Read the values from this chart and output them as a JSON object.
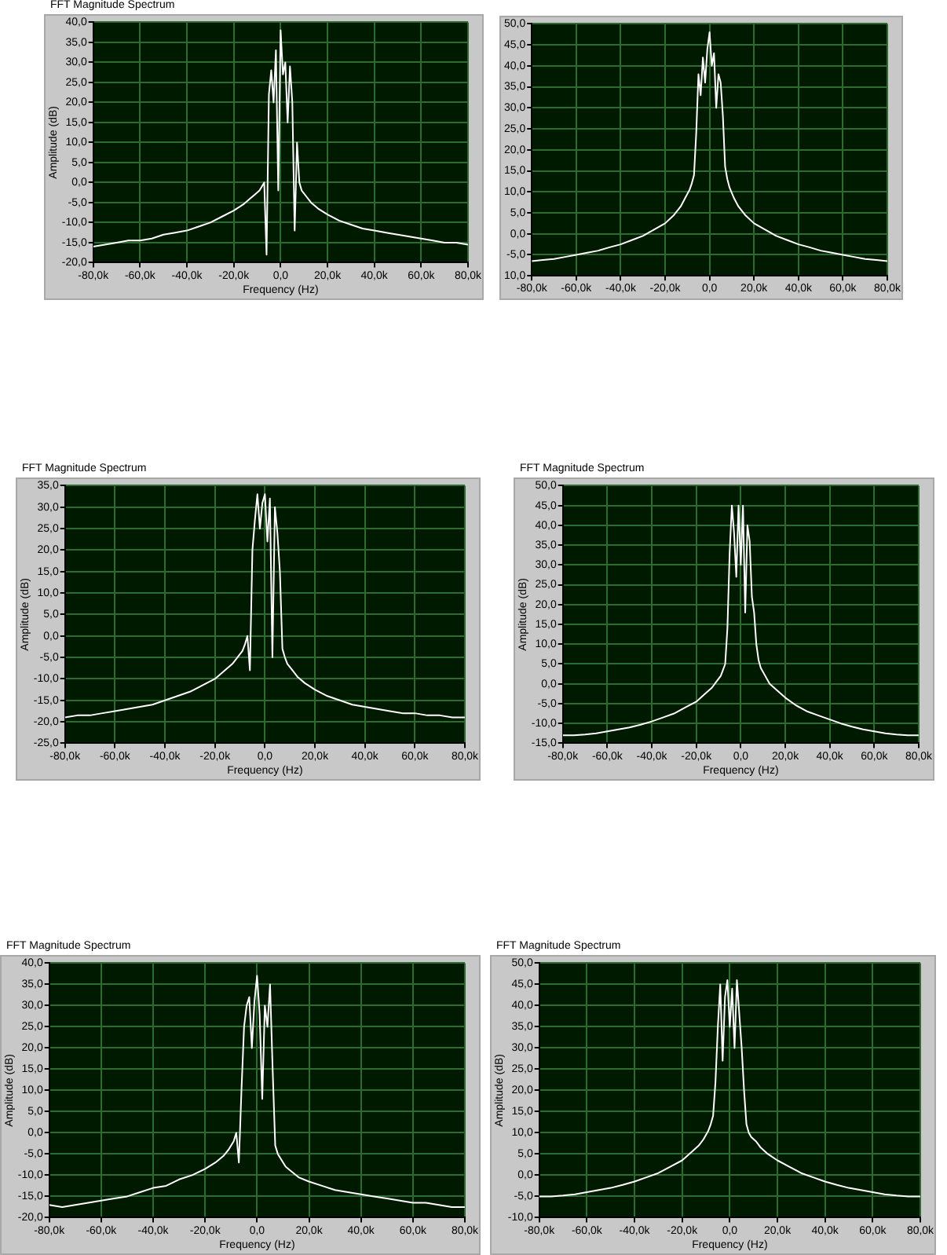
{
  "chart_data": [
    {
      "type": "line",
      "title": "FFT Magnitude Spectrum",
      "xlabel": "Frequency (Hz)",
      "ylabel": "Amplitude (dB)",
      "grid": true,
      "marker": "none",
      "line_style": "solid",
      "xlim": [
        -80000,
        80000
      ],
      "ylim": [
        -20,
        40
      ],
      "xticks": [
        {
          "value": -80000,
          "label": "-80,0k"
        },
        {
          "value": -60000,
          "label": "-60,0k"
        },
        {
          "value": -40000,
          "label": "-40,0k"
        },
        {
          "value": -20000,
          "label": "-20,0k"
        },
        {
          "value": 0,
          "label": "0,0"
        },
        {
          "value": 20000,
          "label": "20,0k"
        },
        {
          "value": 40000,
          "label": "40,0k"
        },
        {
          "value": 60000,
          "label": "60,0k"
        },
        {
          "value": 80000,
          "label": "80,0k"
        }
      ],
      "yticks": [
        {
          "value": -20,
          "label": "-20,0"
        },
        {
          "value": -15,
          "label": "-15,0"
        },
        {
          "value": -10,
          "label": "-10,0"
        },
        {
          "value": -5,
          "label": "-5,0"
        },
        {
          "value": 0,
          "label": "0,0"
        },
        {
          "value": 5,
          "label": "5,0"
        },
        {
          "value": 10,
          "label": "10,0"
        },
        {
          "value": 15,
          "label": "15,0"
        },
        {
          "value": 20,
          "label": "20,0"
        },
        {
          "value": 25,
          "label": "25,0"
        },
        {
          "value": 30,
          "label": "30,0"
        },
        {
          "value": 35,
          "label": "35,0"
        },
        {
          "value": 40,
          "label": "40,0"
        }
      ],
      "x": [
        -80000,
        -75000,
        -70000,
        -65000,
        -60000,
        -55000,
        -50000,
        -45000,
        -40000,
        -35000,
        -30000,
        -25000,
        -20000,
        -16000,
        -13000,
        -11000,
        -9000,
        -8000,
        -7000,
        -6000,
        -5000,
        -4000,
        -3000,
        -2000,
        -1000,
        0,
        1000,
        2000,
        3000,
        4000,
        5000,
        6000,
        7000,
        8000,
        9000,
        11000,
        13000,
        16000,
        20000,
        25000,
        30000,
        35000,
        40000,
        45000,
        50000,
        55000,
        60000,
        65000,
        70000,
        75000,
        80000
      ],
      "series": [
        {
          "color": "#ffffff",
          "values": [
            -16,
            -15.5,
            -15,
            -14.5,
            -14.5,
            -14,
            -13,
            -12.5,
            -12,
            -11,
            -10,
            -8.5,
            -7,
            -5.5,
            -4,
            -3,
            -2,
            -1,
            0,
            -18,
            22,
            28,
            20,
            33,
            -2,
            38,
            27,
            30,
            15,
            29,
            20,
            -12,
            10,
            0,
            -2,
            -3.5,
            -5,
            -6.5,
            -8,
            -9.5,
            -10.5,
            -11.5,
            -12,
            -12.5,
            -13,
            -13.5,
            -14,
            -14.5,
            -15,
            -15,
            -15.5
          ]
        }
      ]
    },
    {
      "type": "line",
      "grid": true,
      "marker": "none",
      "line_style": "solid",
      "xlim": [
        -80000,
        80000
      ],
      "ylim": [
        -10,
        50
      ],
      "xticks": [
        {
          "value": -80000,
          "label": "-80,0k"
        },
        {
          "value": -60000,
          "label": "-60,0k"
        },
        {
          "value": -40000,
          "label": "-40,0k"
        },
        {
          "value": -20000,
          "label": "-20,0k"
        },
        {
          "value": 0,
          "label": "0,0"
        },
        {
          "value": 20000,
          "label": "20,0k"
        },
        {
          "value": 40000,
          "label": "40,0k"
        },
        {
          "value": 60000,
          "label": "60,0k"
        },
        {
          "value": 80000,
          "label": "80,0k"
        }
      ],
      "yticks": [
        {
          "value": -10,
          "label": "10,0"
        },
        {
          "value": -5,
          "label": "-5,0"
        },
        {
          "value": 0,
          "label": "0,0"
        },
        {
          "value": 5,
          "label": "5,0"
        },
        {
          "value": 10,
          "label": "10,0"
        },
        {
          "value": 15,
          "label": "15,0"
        },
        {
          "value": 20,
          "label": "20,0"
        },
        {
          "value": 25,
          "label": "25,0"
        },
        {
          "value": 30,
          "label": "30,0"
        },
        {
          "value": 35,
          "label": "35,0"
        },
        {
          "value": 40,
          "label": "40,0"
        },
        {
          "value": 45,
          "label": "45,0"
        },
        {
          "value": 50,
          "label": "50,0"
        }
      ],
      "x": [
        -80000,
        -75000,
        -70000,
        -65000,
        -60000,
        -55000,
        -50000,
        -45000,
        -40000,
        -35000,
        -30000,
        -25000,
        -20000,
        -16000,
        -13000,
        -11000,
        -9000,
        -8000,
        -7000,
        -6000,
        -5000,
        -4000,
        -3000,
        -2000,
        -1000,
        0,
        1000,
        2000,
        3000,
        4000,
        5000,
        6000,
        7000,
        8000,
        9000,
        11000,
        13000,
        16000,
        20000,
        25000,
        30000,
        35000,
        40000,
        45000,
        50000,
        55000,
        60000,
        65000,
        70000,
        75000,
        80000
      ],
      "series": [
        {
          "color": "#ffffff",
          "values": [
            -6.5,
            -6.2,
            -6,
            -5.5,
            -5,
            -4.5,
            -4,
            -3.2,
            -2.5,
            -1.5,
            -0.5,
            1,
            2.5,
            4.5,
            6.5,
            8.5,
            10.5,
            12,
            14,
            24,
            38,
            33,
            42,
            36,
            44,
            48,
            40,
            43,
            30,
            38,
            36,
            28,
            16,
            13,
            11,
            8.5,
            6.5,
            4.5,
            2.5,
            1,
            -0.5,
            -1.5,
            -2.5,
            -3.2,
            -4,
            -4.5,
            -5,
            -5.5,
            -6,
            -6.2,
            -6.5
          ]
        }
      ]
    },
    {
      "type": "line",
      "title": "FFT Magnitude Spectrum",
      "xlabel": "Frequency (Hz)",
      "ylabel": "Amplitude (dB)",
      "grid": true,
      "marker": "none",
      "line_style": "solid",
      "xlim": [
        -80000,
        80000
      ],
      "ylim": [
        -25,
        35
      ],
      "xticks": [
        {
          "value": -80000,
          "label": "-80,0k"
        },
        {
          "value": -60000,
          "label": "-60,0k"
        },
        {
          "value": -40000,
          "label": "-40,0k"
        },
        {
          "value": -20000,
          "label": "-20,0k"
        },
        {
          "value": 0,
          "label": "0,0"
        },
        {
          "value": 20000,
          "label": "20,0k"
        },
        {
          "value": 40000,
          "label": "40,0k"
        },
        {
          "value": 60000,
          "label": "60,0k"
        },
        {
          "value": 80000,
          "label": "80,0k"
        }
      ],
      "yticks": [
        {
          "value": -25,
          "label": "-25,0"
        },
        {
          "value": -20,
          "label": "-20,0"
        },
        {
          "value": -15,
          "label": "-15,0"
        },
        {
          "value": -10,
          "label": "-10,0"
        },
        {
          "value": -5,
          "label": "-5,0"
        },
        {
          "value": 0,
          "label": "0,0"
        },
        {
          "value": 5,
          "label": "5,0"
        },
        {
          "value": 10,
          "label": "10,0"
        },
        {
          "value": 15,
          "label": "15,0"
        },
        {
          "value": 20,
          "label": "20,0"
        },
        {
          "value": 25,
          "label": "25,0"
        },
        {
          "value": 30,
          "label": "30,0"
        },
        {
          "value": 35,
          "label": "35,0"
        }
      ],
      "x": [
        -80000,
        -75000,
        -70000,
        -65000,
        -60000,
        -55000,
        -50000,
        -45000,
        -40000,
        -35000,
        -30000,
        -25000,
        -20000,
        -16000,
        -13000,
        -11000,
        -9000,
        -8000,
        -7000,
        -6000,
        -5000,
        -4000,
        -3000,
        -2000,
        -1000,
        0,
        1000,
        2000,
        3000,
        4000,
        5000,
        6000,
        7000,
        8000,
        9000,
        11000,
        13000,
        16000,
        20000,
        25000,
        30000,
        35000,
        40000,
        45000,
        50000,
        55000,
        60000,
        65000,
        70000,
        75000,
        80000
      ],
      "series": [
        {
          "color": "#ffffff",
          "values": [
            -19,
            -18.5,
            -18.5,
            -18,
            -17.5,
            -17,
            -16.5,
            -16,
            -15,
            -14,
            -13,
            -11.5,
            -10,
            -8,
            -6.5,
            -5,
            -3.5,
            -2,
            0,
            -8,
            20,
            27,
            33,
            25,
            31,
            33,
            22,
            32,
            -5,
            30,
            24,
            15,
            -3,
            -5,
            -6.5,
            -8,
            -9.5,
            -11,
            -12.5,
            -14,
            -15,
            -16,
            -16.5,
            -17,
            -17.5,
            -18,
            -18,
            -18.5,
            -18.5,
            -19,
            -19
          ]
        }
      ]
    },
    {
      "type": "line",
      "title": "FFT Magnitude Spectrum",
      "xlabel": "Frequency (Hz)",
      "ylabel": "Amplitude (dB)",
      "grid": true,
      "marker": "none",
      "line_style": "solid",
      "xlim": [
        -80000,
        80000
      ],
      "ylim": [
        -15,
        50
      ],
      "xticks": [
        {
          "value": -80000,
          "label": "-80,0k"
        },
        {
          "value": -60000,
          "label": "-60,0k"
        },
        {
          "value": -40000,
          "label": "-40,0k"
        },
        {
          "value": -20000,
          "label": "-20,0k"
        },
        {
          "value": 0,
          "label": "0,0"
        },
        {
          "value": 20000,
          "label": "20,0k"
        },
        {
          "value": 40000,
          "label": "40,0k"
        },
        {
          "value": 60000,
          "label": "60,0k"
        },
        {
          "value": 80000,
          "label": "80,0k"
        }
      ],
      "yticks": [
        {
          "value": -15,
          "label": "-15,0"
        },
        {
          "value": -10,
          "label": "-10,0"
        },
        {
          "value": -5,
          "label": "-5,0"
        },
        {
          "value": 0,
          "label": "0,0"
        },
        {
          "value": 5,
          "label": "5,0"
        },
        {
          "value": 10,
          "label": "10,0"
        },
        {
          "value": 15,
          "label": "15,0"
        },
        {
          "value": 20,
          "label": "20,0"
        },
        {
          "value": 25,
          "label": "25,0"
        },
        {
          "value": 30,
          "label": "30,0"
        },
        {
          "value": 35,
          "label": "35,0"
        },
        {
          "value": 40,
          "label": "40,0"
        },
        {
          "value": 45,
          "label": "45,0"
        },
        {
          "value": 50,
          "label": "50,0"
        }
      ],
      "x": [
        -80000,
        -75000,
        -70000,
        -65000,
        -60000,
        -55000,
        -50000,
        -45000,
        -40000,
        -35000,
        -30000,
        -25000,
        -20000,
        -16000,
        -13000,
        -11000,
        -9000,
        -8000,
        -7000,
        -6000,
        -5000,
        -4000,
        -3000,
        -2000,
        -1000,
        0,
        1000,
        2000,
        3000,
        4000,
        5000,
        6000,
        7000,
        8000,
        9000,
        11000,
        13000,
        16000,
        20000,
        25000,
        30000,
        35000,
        40000,
        45000,
        50000,
        55000,
        60000,
        65000,
        70000,
        75000,
        80000
      ],
      "series": [
        {
          "color": "#ffffff",
          "values": [
            -13,
            -13,
            -12.8,
            -12.5,
            -12,
            -11.5,
            -11,
            -10.3,
            -9.5,
            -8.5,
            -7.5,
            -6,
            -4.5,
            -2.5,
            -1,
            0.5,
            2,
            3.5,
            5,
            14,
            33,
            45,
            38,
            27,
            45,
            30,
            45,
            18,
            40,
            36,
            22,
            18,
            10,
            6,
            4,
            2,
            0,
            -1.5,
            -3.5,
            -5.5,
            -7,
            -8,
            -9,
            -10,
            -10.8,
            -11.5,
            -12,
            -12.5,
            -12.8,
            -13,
            -13
          ]
        }
      ]
    },
    {
      "type": "line",
      "title": "FFT Magnitude Spectrum",
      "xlabel": "Frequency (Hz)",
      "ylabel": "Amplitude (dB)",
      "grid": true,
      "marker": "none",
      "line_style": "solid",
      "xlim": [
        -80000,
        80000
      ],
      "ylim": [
        -20,
        40
      ],
      "xticks": [
        {
          "value": -80000,
          "label": "-80,0k"
        },
        {
          "value": -60000,
          "label": "-60,0k"
        },
        {
          "value": -40000,
          "label": "-40,0k"
        },
        {
          "value": -20000,
          "label": "-20,0k"
        },
        {
          "value": 0,
          "label": "0,0"
        },
        {
          "value": 20000,
          "label": "20,0k"
        },
        {
          "value": 40000,
          "label": "40,0k"
        },
        {
          "value": 60000,
          "label": "60,0k"
        },
        {
          "value": 80000,
          "label": "80,0k"
        }
      ],
      "yticks": [
        {
          "value": -20,
          "label": "-20,0"
        },
        {
          "value": -15,
          "label": "-15,0"
        },
        {
          "value": -10,
          "label": "-10,0"
        },
        {
          "value": -5,
          "label": "-5,0"
        },
        {
          "value": 0,
          "label": "0,0"
        },
        {
          "value": 5,
          "label": "5,0"
        },
        {
          "value": 10,
          "label": "10,0"
        },
        {
          "value": 15,
          "label": "15,0"
        },
        {
          "value": 20,
          "label": "20,0"
        },
        {
          "value": 25,
          "label": "25,0"
        },
        {
          "value": 30,
          "label": "30,0"
        },
        {
          "value": 35,
          "label": "35,0"
        },
        {
          "value": 40,
          "label": "40,0"
        }
      ],
      "x": [
        -80000,
        -75000,
        -70000,
        -65000,
        -60000,
        -55000,
        -50000,
        -45000,
        -40000,
        -35000,
        -30000,
        -25000,
        -20000,
        -16000,
        -13000,
        -11000,
        -9000,
        -8000,
        -7000,
        -6000,
        -5000,
        -4000,
        -3000,
        -2000,
        -1000,
        0,
        1000,
        2000,
        3000,
        4000,
        5000,
        6000,
        7000,
        8000,
        9000,
        11000,
        13000,
        16000,
        20000,
        25000,
        30000,
        35000,
        40000,
        45000,
        50000,
        55000,
        60000,
        65000,
        70000,
        75000,
        80000
      ],
      "series": [
        {
          "color": "#ffffff",
          "values": [
            -17,
            -17.5,
            -17,
            -16.5,
            -16,
            -15.5,
            -15,
            -14,
            -13,
            -12.5,
            -11,
            -10,
            -8.5,
            -7,
            -5.5,
            -4,
            -2,
            0,
            -7,
            10,
            25,
            30,
            32,
            20,
            31,
            37,
            28,
            8,
            30,
            25,
            35,
            15,
            -3,
            -5,
            -6,
            -8,
            -9,
            -10.5,
            -11.5,
            -12.5,
            -13.5,
            -14,
            -14.5,
            -15,
            -15.5,
            -16,
            -16.5,
            -16.5,
            -17,
            -17.5,
            -17.5
          ]
        }
      ]
    },
    {
      "type": "line",
      "title": "FFT Magnitude Spectrum",
      "xlabel": "Frequency (Hz)",
      "ylabel": "Amplitude (dB)",
      "grid": true,
      "marker": "none",
      "line_style": "solid",
      "xlim": [
        -80000,
        80000
      ],
      "ylim": [
        -10,
        50
      ],
      "xticks": [
        {
          "value": -80000,
          "label": "-80,0k"
        },
        {
          "value": -60000,
          "label": "-60,0k"
        },
        {
          "value": -40000,
          "label": "-40,0k"
        },
        {
          "value": -20000,
          "label": "-20,0k"
        },
        {
          "value": 0,
          "label": "0,0"
        },
        {
          "value": 20000,
          "label": "20,0k"
        },
        {
          "value": 40000,
          "label": "40,0k"
        },
        {
          "value": 60000,
          "label": "60,0k"
        },
        {
          "value": 80000,
          "label": "80,0k"
        }
      ],
      "yticks": [
        {
          "value": -10,
          "label": "-10,0"
        },
        {
          "value": -5,
          "label": "-5,0"
        },
        {
          "value": 0,
          "label": "0,0"
        },
        {
          "value": 5,
          "label": "5,0"
        },
        {
          "value": 10,
          "label": "10,0"
        },
        {
          "value": 15,
          "label": "15,0"
        },
        {
          "value": 20,
          "label": "20,0"
        },
        {
          "value": 25,
          "label": "25,0"
        },
        {
          "value": 30,
          "label": "30,0"
        },
        {
          "value": 35,
          "label": "35,0"
        },
        {
          "value": 40,
          "label": "40,0"
        },
        {
          "value": 45,
          "label": "45,0"
        },
        {
          "value": 50,
          "label": "50,0"
        }
      ],
      "x": [
        -80000,
        -75000,
        -70000,
        -65000,
        -60000,
        -55000,
        -50000,
        -45000,
        -40000,
        -35000,
        -30000,
        -25000,
        -20000,
        -16000,
        -13000,
        -11000,
        -9000,
        -8000,
        -7000,
        -6000,
        -5000,
        -4000,
        -3000,
        -2000,
        -1000,
        0,
        1000,
        2000,
        3000,
        4000,
        5000,
        6000,
        7000,
        8000,
        9000,
        11000,
        13000,
        16000,
        20000,
        25000,
        30000,
        35000,
        40000,
        45000,
        50000,
        55000,
        60000,
        65000,
        70000,
        75000,
        80000
      ],
      "series": [
        {
          "color": "#ffffff",
          "values": [
            -5,
            -5,
            -4.8,
            -4.5,
            -4,
            -3.5,
            -3,
            -2.3,
            -1.5,
            -0.5,
            0.5,
            2,
            3.5,
            5.5,
            7,
            8.5,
            10.5,
            12,
            14,
            22,
            35,
            45,
            27,
            42,
            46,
            35,
            44,
            30,
            46,
            38,
            30,
            20,
            12,
            10,
            9,
            8,
            6.5,
            5,
            3.5,
            2,
            0.5,
            -0.5,
            -1.5,
            -2.3,
            -3,
            -3.5,
            -4,
            -4.5,
            -4.8,
            -5,
            -5
          ]
        }
      ]
    }
  ]
}
